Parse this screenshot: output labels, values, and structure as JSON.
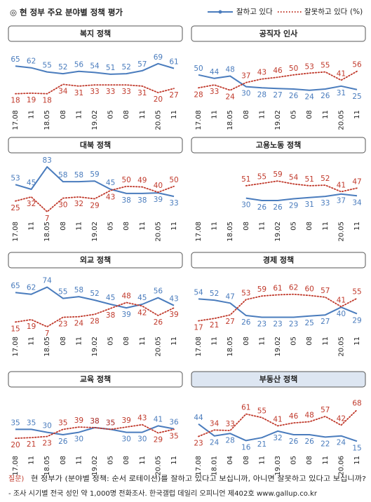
{
  "title": "◎  현 정부 주요 분야별 정책 평가",
  "unit": "(%)",
  "chart_data": [
    {
      "type": "line",
      "title": "복지 정책",
      "categories": [
        "17.08",
        "11",
        "18.05",
        "08",
        "11",
        "19.02",
        "05",
        "08",
        "11",
        "20.05",
        "11"
      ],
      "series": [
        {
          "name": "잘하고 있다",
          "color": "#4a7cbd",
          "line_style": "solid",
          "values": [
            65,
            62,
            55,
            52,
            56,
            54,
            51,
            52,
            57,
            69,
            61
          ]
        },
        {
          "name": "잘못하고 있다",
          "color": "#c0392b",
          "line_style": "dotted",
          "values": [
            18,
            19,
            18,
            34,
            31,
            33,
            33,
            33,
            31,
            20,
            27
          ]
        }
      ]
    },
    {
      "type": "line",
      "title": "공직자 인사",
      "categories": [
        "17.08",
        "11",
        "18.05",
        "08",
        "11",
        "19.02",
        "05",
        "08",
        "11",
        "20.05",
        "11"
      ],
      "series": [
        {
          "name": "잘하고 있다",
          "color": "#4a7cbd",
          "line_style": "solid",
          "values": [
            50,
            44,
            48,
            30,
            28,
            27,
            26,
            24,
            26,
            31,
            25
          ]
        },
        {
          "name": "잘못하고 있다",
          "color": "#c0392b",
          "line_style": "dotted",
          "values": [
            28,
            33,
            24,
            37,
            43,
            46,
            50,
            53,
            55,
            41,
            56
          ]
        }
      ]
    },
    {
      "type": "line",
      "title": "대북 정책",
      "categories": [
        "17.08",
        "11",
        "18.05",
        "08",
        "11",
        "19.02",
        "05",
        "08",
        "11",
        "20.05",
        "11"
      ],
      "series": [
        {
          "name": "잘하고 있다",
          "color": "#4a7cbd",
          "line_style": "solid",
          "values": [
            53,
            45,
            83,
            58,
            58,
            59,
            45,
            38,
            38,
            39,
            33
          ]
        },
        {
          "name": "잘못하고 있다",
          "color": "#c0392b",
          "line_style": "dotted",
          "values": [
            25,
            32,
            7,
            30,
            32,
            29,
            43,
            50,
            49,
            40,
            50
          ]
        }
      ]
    },
    {
      "type": "line",
      "title": "고용노동 정책",
      "categories": [
        "17.08",
        "11",
        "18.05",
        "08",
        "11",
        "19.02",
        "05",
        "08",
        "11",
        "20.05",
        "11"
      ],
      "series": [
        {
          "name": "잘하고 있다",
          "color": "#4a7cbd",
          "line_style": "solid",
          "values": [
            null,
            null,
            null,
            30,
            26,
            26,
            29,
            31,
            33,
            37,
            34
          ]
        },
        {
          "name": "잘못하고 있다",
          "color": "#c0392b",
          "line_style": "dotted",
          "values": [
            null,
            null,
            null,
            51,
            55,
            59,
            54,
            51,
            52,
            41,
            47
          ]
        }
      ]
    },
    {
      "type": "line",
      "title": "외교 정책",
      "categories": [
        "17.08",
        "11",
        "18.05",
        "08",
        "11",
        "19.02",
        "05",
        "08",
        "11",
        "20.05",
        "11"
      ],
      "series": [
        {
          "name": "잘하고 있다",
          "color": "#4a7cbd",
          "line_style": "solid",
          "values": [
            65,
            62,
            74,
            55,
            58,
            52,
            45,
            39,
            45,
            56,
            43
          ]
        },
        {
          "name": "잘못하고 있다",
          "color": "#c0392b",
          "line_style": "dotted",
          "values": [
            15,
            19,
            7,
            23,
            24,
            28,
            38,
            48,
            42,
            26,
            39
          ]
        }
      ]
    },
    {
      "type": "line",
      "title": "경제 정책",
      "categories": [
        "17.08",
        "11",
        "18.05",
        "08",
        "11",
        "19.02",
        "05",
        "08",
        "11",
        "20.05",
        "11"
      ],
      "series": [
        {
          "name": "잘하고 있다",
          "color": "#4a7cbd",
          "line_style": "solid",
          "values": [
            54,
            52,
            47,
            26,
            23,
            23,
            23,
            25,
            27,
            40,
            29
          ]
        },
        {
          "name": "잘못하고 있다",
          "color": "#c0392b",
          "line_style": "dotted",
          "values": [
            17,
            21,
            27,
            53,
            59,
            61,
            62,
            60,
            57,
            41,
            55
          ]
        }
      ]
    },
    {
      "type": "line",
      "title": "교육 정책",
      "categories": [
        "17.08",
        "11",
        "18.05",
        "08",
        "11",
        "19.02",
        "05",
        "08",
        "11",
        "20.05",
        "11"
      ],
      "series": [
        {
          "name": "잘하고 있다",
          "color": "#4a7cbd",
          "line_style": "solid",
          "values": [
            35,
            35,
            30,
            26,
            30,
            38,
            35,
            30,
            30,
            41,
            36
          ]
        },
        {
          "name": "잘못하고 있다",
          "color": "#c0392b",
          "line_style": "dotted",
          "values": [
            20,
            21,
            23,
            35,
            39,
            38,
            35,
            39,
            43,
            29,
            35
          ]
        }
      ]
    },
    {
      "type": "line",
      "title": "부동산 정책",
      "highlight": true,
      "categories": [
        "17.08",
        "18.01",
        "04",
        "08",
        "11",
        "19.03",
        "05",
        "08",
        "11",
        "20.06",
        "11"
      ],
      "series": [
        {
          "name": "잘하고 있다",
          "color": "#4a7cbd",
          "line_style": "solid",
          "values": [
            44,
            24,
            28,
            16,
            21,
            32,
            26,
            26,
            22,
            24,
            15
          ]
        },
        {
          "name": "잘못하고 있다",
          "color": "#c0392b",
          "line_style": "dotted",
          "values": [
            23,
            34,
            33,
            61,
            55,
            41,
            46,
            48,
            57,
            42,
            68
          ]
        }
      ]
    }
  ],
  "footer": {
    "question_label": "질문)",
    "question": "현 정부가 (분야별 정책: 순서 로테이션)를 잘하고 있다고 보십니까, 아니면 잘못하고 있다고 보십니까?",
    "note": "- 조사 시기별 전국 성인 약 1,000명 전화조사. 한국갤럽 데일리 오피니언 제402호 www.gallup.co.kr"
  }
}
